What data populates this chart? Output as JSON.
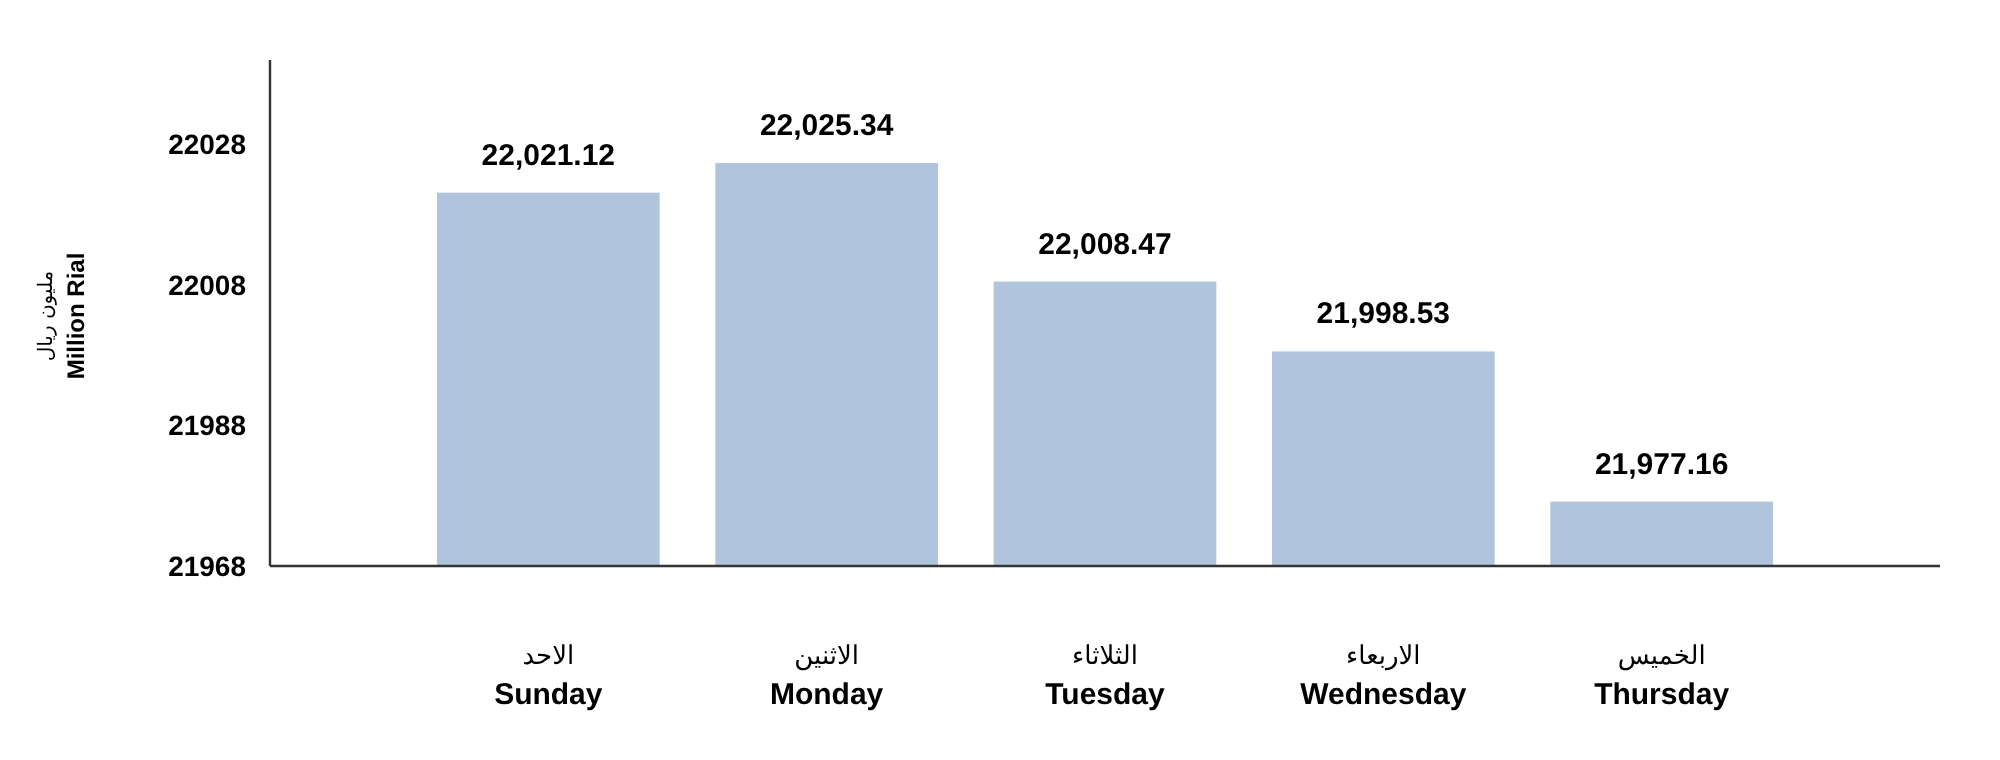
{
  "chart_data": {
    "type": "bar",
    "ylabel": "مليون ريال **Million Rial**",
    "categories": [
      "الاحد **Sunday**",
      "الاثنين **Monday**",
      "الثلاثاء **Tuesday**",
      "الاربعاء **Wednesday**",
      "الخميس **Thursday**"
    ],
    "values": [
      22021.12,
      22025.34,
      22008.47,
      21998.53,
      21977.16
    ],
    "value_labels": [
      "22,021.12",
      "22,025.34",
      "22,008.47",
      "21,998.53",
      "21,977.16"
    ],
    "color": "#b0c4de",
    "ylim": [
      21968,
      22040
    ],
    "yticks": [
      21968,
      21988,
      22008,
      22028
    ],
    "grid": false
  }
}
